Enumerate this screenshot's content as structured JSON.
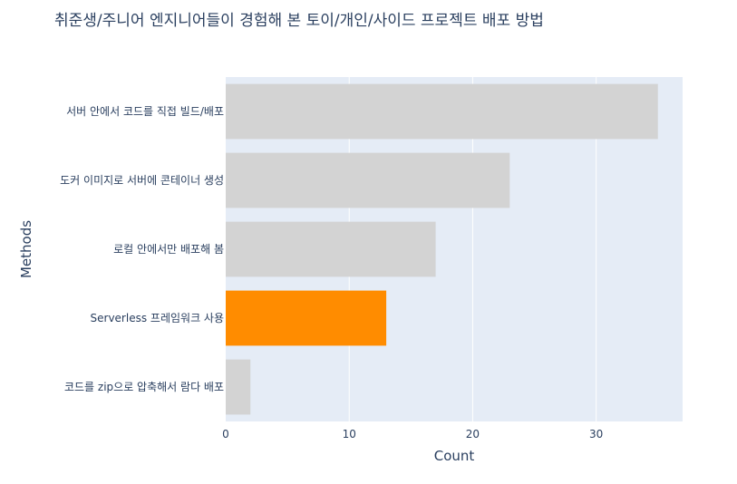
{
  "chart_data": {
    "type": "bar",
    "orientation": "horizontal",
    "title": "취준생/주니어 엔지니어들이 경험해 본 토이/개인/사이드 프로젝트 배포 방법",
    "xlabel": "Count",
    "ylabel": "Methods",
    "categories": [
      "서버 안에서 코드를 직접 빌드/배포",
      "도커 이미지로 서버에 콘테이너 생성",
      "로컬 안에서만 배포해 봄",
      "Serverless 프레임워크 사용",
      "코드를 zip으로 압축해서 람다 배포"
    ],
    "values": [
      35,
      23,
      17,
      13,
      2
    ],
    "highlight_index": 3,
    "xlim": [
      0,
      37
    ],
    "xticks": [
      0,
      10,
      20,
      30
    ],
    "grid": true,
    "colors": {
      "bar": "#d3d3d3",
      "highlight": "#ff8c00",
      "plot_bg": "#e5ecf6",
      "grid": "#ffffff",
      "text": "#2a3f5f"
    }
  }
}
